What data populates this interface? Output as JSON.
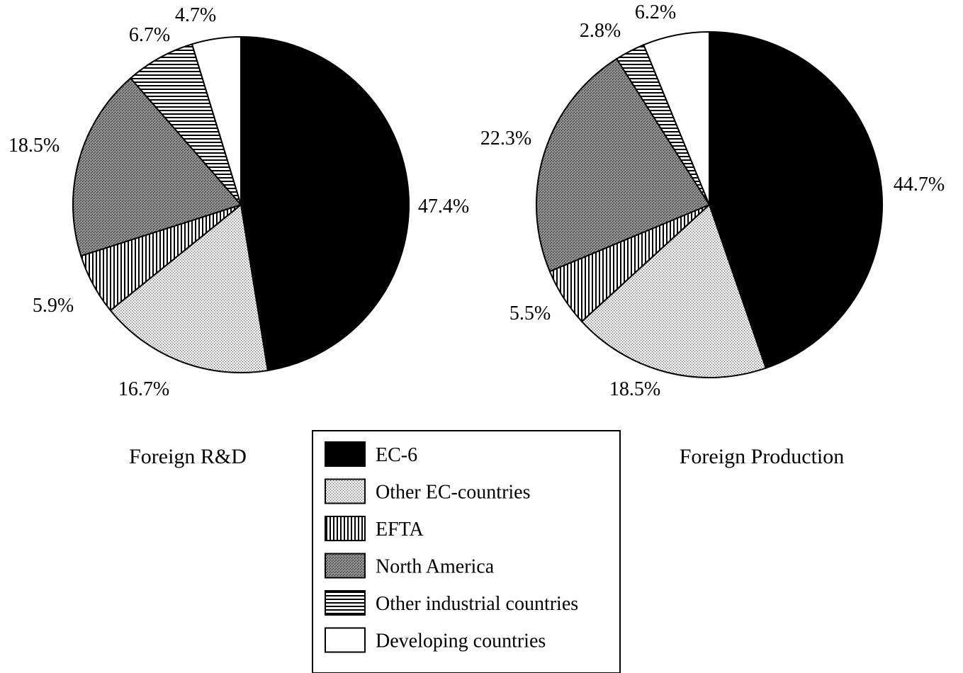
{
  "categories": [
    "EC-6",
    "Other EC-countries",
    "EFTA",
    "North America",
    "Other industrial countries",
    "Developing countries"
  ],
  "patterns": {
    "EC-6": "solid-black",
    "Other EC-countries": "light-stipple",
    "EFTA": "vertical-lines",
    "North America": "dark-stipple",
    "Other industrial countries": "horizontal-lines",
    "Developing countries": "white"
  },
  "chart_data": [
    {
      "type": "pie",
      "title": "Foreign R&D",
      "categories": [
        "EC-6",
        "Other EC-countries",
        "EFTA",
        "North America",
        "Other industrial countries",
        "Developing countries"
      ],
      "values": [
        47.4,
        16.7,
        5.9,
        18.5,
        6.7,
        4.7
      ],
      "labels": [
        "47.4%",
        "16.7%",
        "5.9%",
        "18.5%",
        "6.7%",
        "4.7%"
      ],
      "legend": "shared, bottom-center"
    },
    {
      "type": "pie",
      "title": "Foreign Production",
      "categories": [
        "EC-6",
        "Other EC-countries",
        "EFTA",
        "North America",
        "Other industrial countries",
        "Developing countries"
      ],
      "values": [
        44.7,
        18.5,
        5.5,
        22.3,
        2.8,
        6.2
      ],
      "labels": [
        "44.7%",
        "18.5%",
        "5.5%",
        "22.3%",
        "2.8%",
        "6.2%"
      ],
      "legend": "shared, bottom-center"
    }
  ]
}
